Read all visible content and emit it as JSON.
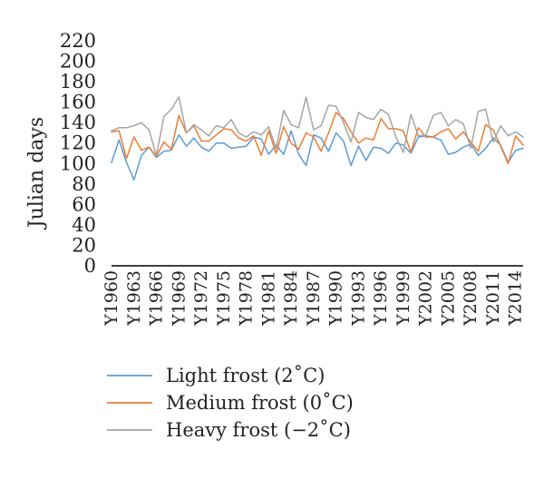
{
  "chart_data": {
    "type": "line",
    "title": "",
    "xlabel": "",
    "ylabel": "Julian days",
    "ylim": [
      0,
      220
    ],
    "yticks": [
      0,
      20,
      40,
      60,
      80,
      100,
      120,
      140,
      160,
      180,
      200,
      220
    ],
    "x": [
      1960,
      1961,
      1962,
      1963,
      1964,
      1965,
      1966,
      1967,
      1968,
      1969,
      1970,
      1971,
      1972,
      1973,
      1974,
      1975,
      1976,
      1977,
      1978,
      1979,
      1980,
      1981,
      1982,
      1983,
      1984,
      1985,
      1986,
      1987,
      1988,
      1989,
      1990,
      1991,
      1992,
      1993,
      1994,
      1995,
      1996,
      1997,
      1998,
      1999,
      2000,
      2001,
      2002,
      2003,
      2004,
      2005,
      2006,
      2007,
      2008,
      2009,
      2010,
      2011,
      2012,
      2013,
      2014,
      2015
    ],
    "x_tick_labels": [
      "Y1960",
      "Y1963",
      "Y1966",
      "Y1969",
      "Y1972",
      "Y1975",
      "Y1978",
      "Y1981",
      "Y1984",
      "Y1987",
      "Y1990",
      "Y1993",
      "Y1996",
      "Y1999",
      "Y2002",
      "Y2005",
      "Y2008",
      "Y2011",
      "Y2014"
    ],
    "x_tick_years": [
      1960,
      1963,
      1966,
      1969,
      1972,
      1975,
      1978,
      1981,
      1984,
      1987,
      1990,
      1993,
      1996,
      1999,
      2002,
      2005,
      2008,
      2011,
      2014
    ],
    "grid": false,
    "legend_position": "bottom",
    "series": [
      {
        "name": "Light frost (2˚C)",
        "color": "#5b9bd5",
        "values": [
          101,
          123,
          101,
          84,
          108,
          116,
          106,
          112,
          113,
          128,
          117,
          125,
          116,
          112,
          120,
          120,
          115,
          116,
          117,
          126,
          124,
          109,
          118,
          109,
          132,
          109,
          98,
          128,
          125,
          112,
          130,
          122,
          98,
          117,
          103,
          116,
          115,
          110,
          120,
          118,
          110,
          126,
          127,
          126,
          123,
          109,
          111,
          116,
          119,
          108,
          115,
          125,
          118,
          101,
          113,
          115
        ]
      },
      {
        "name": "Medium frost (0˚C)",
        "color": "#ed7d31",
        "values": [
          131,
          132,
          105,
          126,
          113,
          116,
          107,
          121,
          114,
          147,
          130,
          137,
          122,
          122,
          128,
          134,
          133,
          125,
          122,
          127,
          108,
          132,
          110,
          136,
          120,
          114,
          130,
          126,
          112,
          130,
          150,
          144,
          131,
          120,
          125,
          123,
          144,
          134,
          134,
          132,
          111,
          135,
          126,
          126,
          131,
          134,
          124,
          131,
          121,
          112,
          138,
          133,
          117,
          100,
          127,
          118
        ]
      },
      {
        "name": "Heavy frost (−2˚C)",
        "color": "#a5a5a5",
        "values": [
          132,
          135,
          135,
          137,
          140,
          133,
          108,
          146,
          153,
          165,
          130,
          138,
          133,
          127,
          137,
          135,
          143,
          130,
          126,
          131,
          128,
          136,
          115,
          152,
          138,
          135,
          165,
          133,
          137,
          157,
          156,
          140,
          121,
          150,
          145,
          143,
          153,
          148,
          126,
          111,
          148,
          127,
          128,
          147,
          150,
          137,
          143,
          139,
          115,
          151,
          153,
          121,
          137,
          127,
          131,
          126
        ]
      }
    ]
  }
}
